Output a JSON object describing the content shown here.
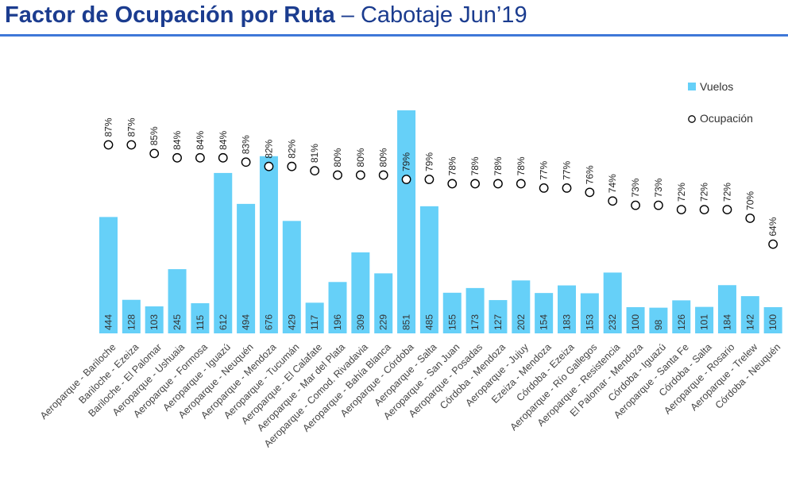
{
  "header": {
    "title_main": "Factor de Ocupación por Ruta",
    "title_sep": " – ",
    "title_sub": "Cabotaje Jun’19"
  },
  "colors": {
    "title": "#1b3c8f",
    "rule": "#3e78d8",
    "bar": "#66d0f8",
    "marker": "#000000"
  },
  "chart_data": {
    "type": "bar",
    "title": "Factor de Ocupación por Ruta – Cabotaje Jun’19",
    "categories": [
      "Aeroparque - Bariloche",
      "Bariloche - Ezeiza",
      "Bariloche - El Palomar",
      "Aeroparque - Ushuaia",
      "Aeroparque - Formosa",
      "Aeroparque - Iguazú",
      "Aeroparque - Neuquén",
      "Aeroparque - Mendoza",
      "Aeroparque - Tucumán",
      "Aeroparque - El Calafate",
      "Aeroparque - Mar del Plata",
      "Aeroparque - Comod. Rivadavia",
      "Aeroparque - Bahía Blanca",
      "Aeroparque - Córdoba",
      "Aeroparque - Salta",
      "Aeroparque - San Juan",
      "Aeroparque - Posadas",
      "Córdoba - Mendoza",
      "Aeroparque - Jujuy",
      "Ezeiza - Mendoza",
      "Córdoba - Ezeiza",
      "Aeroparque - Río Gallegos",
      "Aeroparque - Resistencia",
      "El Palomar - Mendoza",
      "Córdoba - Iguazú",
      "Aeroparque - Santa Fe",
      "Córdoba - Salta",
      "Aeroparque - Rosario",
      "Aeroparque - Trelew",
      "Córdoba - Neuquén"
    ],
    "series": [
      {
        "name": "Vuelos",
        "type": "bar",
        "values": [
          444,
          128,
          103,
          245,
          115,
          612,
          494,
          676,
          429,
          117,
          196,
          309,
          229,
          851,
          485,
          155,
          173,
          127,
          202,
          154,
          183,
          153,
          232,
          100,
          98,
          126,
          101,
          184,
          142,
          100
        ],
        "labels": [
          "444",
          "128",
          "103",
          "245",
          "115",
          "612",
          "494",
          "676",
          "429",
          "117",
          "196",
          "309",
          "229",
          "851",
          "485",
          "155",
          "173",
          "127",
          "202",
          "154",
          "183",
          "153",
          "232",
          "100",
          "98",
          "126",
          "101",
          "184",
          "142",
          "100"
        ]
      },
      {
        "name": "Ocupación",
        "type": "scatter",
        "values": [
          87,
          87,
          85,
          84,
          84,
          84,
          83,
          82,
          82,
          81,
          80,
          80,
          80,
          79,
          79,
          78,
          78,
          78,
          78,
          77,
          77,
          76,
          74,
          73,
          73,
          72,
          72,
          72,
          70,
          64
        ],
        "labels": [
          "87%",
          "87%",
          "85%",
          "84%",
          "84%",
          "84%",
          "83%",
          "82%",
          "82%",
          "81%",
          "80%",
          "80%",
          "80%",
          "79%",
          "79%",
          "78%",
          "78%",
          "78%",
          "78%",
          "77%",
          "77%",
          "76%",
          "74%",
          "73%",
          "73%",
          "72%",
          "72%",
          "72%",
          "70%",
          "64%"
        ]
      }
    ],
    "legend": {
      "position": "top-right",
      "items": [
        "Vuelos",
        "Ocupación"
      ]
    },
    "grid": false,
    "xlabel": "",
    "ylabel": ""
  }
}
